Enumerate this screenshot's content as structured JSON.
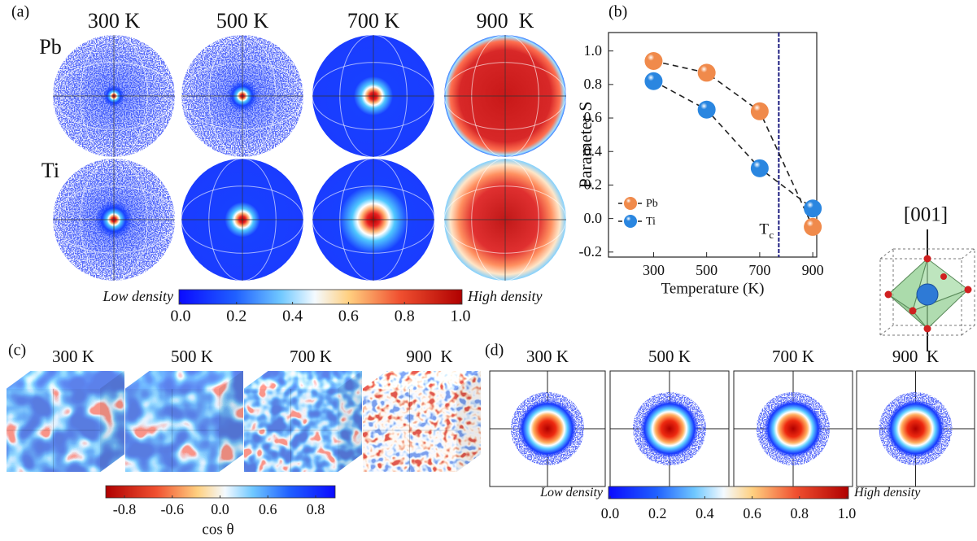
{
  "figure": {
    "panel_a": {
      "label": "(a)",
      "temperatures": [
        "300 K",
        "500 K",
        "700 K",
        "900  K"
      ],
      "elements": [
        "Pb",
        "Ti"
      ],
      "colorbar": {
        "low_label": "Low density",
        "high_label": "High density",
        "lim": [
          0,
          1
        ],
        "ticks": [
          {
            "value": 0,
            "label": "0.0"
          },
          0.2,
          0.4,
          0.6,
          0.8,
          {
            "value": 1,
            "label": "1.0"
          }
        ]
      }
    },
    "panel_c": {
      "label": "(c)",
      "temperatures": [
        "300 K",
        "500 K",
        "700 K",
        "900  K"
      ],
      "colorbar": {
        "label": "cos θ",
        "ticks": [
          -0.8,
          -0.6,
          {
            "value": 0,
            "label": "0.0"
          },
          0.6,
          0.8
        ]
      }
    },
    "panel_d": {
      "label": "(d)",
      "temperatures": [
        "300 K",
        "500 K",
        "700 K",
        "900  K"
      ],
      "colorbar": {
        "low_label": "Low density",
        "high_label": "High density",
        "lim": [
          0,
          1
        ],
        "ticks": [
          {
            "value": 0,
            "label": "0.0"
          },
          0.2,
          0.4,
          0.6,
          0.8,
          {
            "value": 1,
            "label": "1.0"
          }
        ]
      }
    },
    "inset": {
      "direction": "[001]"
    }
  },
  "chart_data": {
    "type": "line",
    "panel_label": "(b)",
    "x_label": "Temperature (K)",
    "y_label": "Parameter S",
    "x": [
      300,
      500,
      700,
      900
    ],
    "series": [
      {
        "name": "Pb",
        "color": "#f08a4b",
        "values": [
          0.94,
          0.87,
          0.64,
          -0.05
        ]
      },
      {
        "name": "Ti",
        "color": "#2a86e0",
        "values": [
          0.82,
          0.65,
          0.3,
          0.06
        ]
      }
    ],
    "xlim": [
      130,
      915
    ],
    "ylim": [
      -0.23,
      1.11
    ],
    "xticks": [
      300,
      500,
      700,
      900
    ],
    "yticks": [
      -0.2,
      {
        "value": 0,
        "label": "0.0"
      },
      0.2,
      0.4,
      0.6,
      0.8,
      {
        "value": 1,
        "label": "1.0"
      }
    ],
    "vline": {
      "x": 772,
      "label": "T",
      "label_sub": "c",
      "color": "#1c1c80"
    },
    "legend": "lower left"
  }
}
